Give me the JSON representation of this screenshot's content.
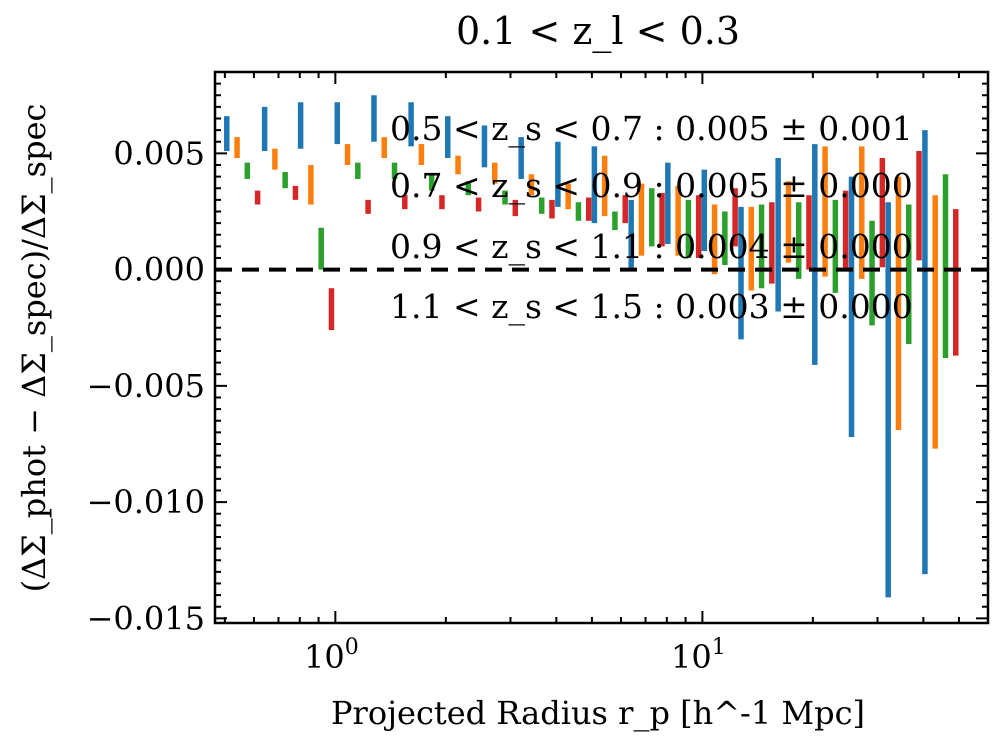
{
  "chart_data": {
    "type": "errorbar",
    "title": "0.1 < z_l < 0.3",
    "xlabel": "Projected Radius r_p [h^-1 Mpc]",
    "ylabel": "(ΔΣ_phot − ΔΣ_spec)/ΔΣ_spec",
    "xscale": "log",
    "xlim": [
      0.47,
      60
    ],
    "ylim": [
      -0.0152,
      0.0085
    ],
    "y_ticks": [
      "0.005",
      "0.000",
      "−0.005",
      "−0.010",
      "−0.015"
    ],
    "x_ticks": [
      {
        "base": "10",
        "exp": "0",
        "value": 1
      },
      {
        "base": "10",
        "exp": "1",
        "value": 10
      }
    ],
    "reference_line": {
      "y": 0,
      "style": "dashed",
      "color": "#000000"
    },
    "legend": {
      "placement": "upper-right",
      "entries": [
        "0.5 < z_s < 0.7 : 0.005 ± 0.001",
        "0.7 < z_s < 0.9 : 0.005 ± 0.000",
        "0.9 < z_s < 1.1 : 0.004 ± 0.000",
        "1.1 < z_s < 1.5 : 0.003 ± 0.000"
      ]
    },
    "x": [
      0.56,
      0.71,
      0.89,
      1.12,
      1.41,
      1.78,
      2.24,
      2.82,
      3.55,
      4.47,
      5.62,
      7.08,
      8.91,
      11.2,
      14.1,
      17.8,
      22.4,
      28.2,
      35.5,
      44.7
    ],
    "series": [
      {
        "color": "#1f77b4",
        "low": [
          0.0051,
          0.0051,
          0.0052,
          0.0054,
          0.0055,
          0.0053,
          0.0048,
          0.0044,
          0.0039,
          0.0027,
          0.002,
          0.0,
          0.0011,
          0.0008,
          -0.003,
          -0.0018,
          -0.0041,
          -0.0072,
          -0.0141,
          -0.0131
        ],
        "high": [
          0.0066,
          0.007,
          0.0072,
          0.0072,
          0.0075,
          0.0072,
          0.0066,
          0.0062,
          0.0057,
          0.0055,
          0.0053,
          0.003,
          0.0046,
          0.0043,
          0.0027,
          0.0048,
          0.0054,
          0.004,
          0.0029,
          0.006
        ]
      },
      {
        "color": "#ff7f0e",
        "low": [
          0.0048,
          0.0043,
          0.0028,
          0.0045,
          0.0048,
          0.0045,
          0.0041,
          0.0037,
          0.0032,
          0.0026,
          0.0023,
          0.0006,
          0.0006,
          -0.0002,
          -0.0009,
          0.0003,
          -0.0003,
          -0.0004,
          -0.0069,
          -0.0077
        ],
        "high": [
          0.0057,
          0.0052,
          0.0045,
          0.0054,
          0.0057,
          0.0054,
          0.0049,
          0.0046,
          0.0041,
          0.0037,
          0.0049,
          0.0037,
          0.0036,
          0.0028,
          0.0027,
          0.0038,
          0.0053,
          0.0053,
          0.004,
          0.0032
        ]
      },
      {
        "color": "#2ca02c",
        "low": [
          0.0039,
          0.0035,
          0.0,
          0.0039,
          0.0039,
          0.0034,
          0.0032,
          0.0028,
          0.0024,
          0.0021,
          0.0017,
          0.001,
          0.0005,
          0.0002,
          -0.0008,
          -0.0004,
          -0.001,
          -0.0024,
          -0.0032,
          -0.0038
        ],
        "high": [
          0.0046,
          0.0042,
          0.0018,
          0.0046,
          0.0046,
          0.0041,
          0.0038,
          0.0034,
          0.0031,
          0.0029,
          0.0025,
          0.0035,
          0.003,
          0.0025,
          0.0028,
          0.0029,
          0.003,
          0.0021,
          0.0028,
          0.0041
        ]
      },
      {
        "color": "#d62728",
        "low": [
          0.0028,
          0.003,
          -0.0026,
          0.0024,
          0.0026,
          0.0026,
          0.0025,
          0.0023,
          0.0022,
          0.0021,
          0.002,
          0.001,
          0.0005,
          0.001,
          -0.0006,
          0.0,
          0.0,
          0.0001,
          0.0004,
          -0.0037
        ],
        "high": [
          0.0034,
          0.0036,
          -0.0008,
          0.003,
          0.0032,
          0.0032,
          0.0031,
          0.003,
          0.003,
          0.0031,
          0.0032,
          0.0033,
          0.0032,
          0.0035,
          0.0029,
          0.0032,
          0.0034,
          0.0048,
          0.0051,
          0.0026
        ]
      }
    ],
    "grid": false
  }
}
